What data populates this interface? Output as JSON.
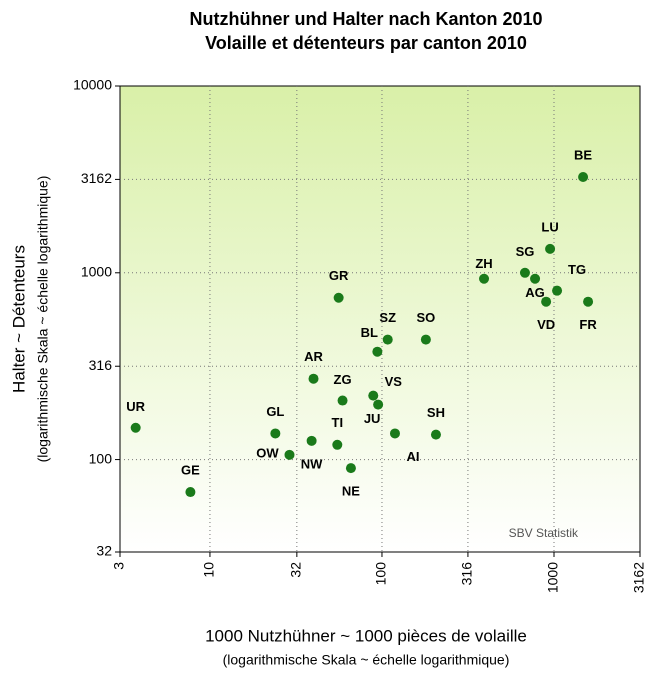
{
  "chart_data": {
    "type": "scatter",
    "title": [
      "Nutzhühner und Halter nach Kanton 2010",
      "Volaille et détenteurs par canton 2010"
    ],
    "xlabel": [
      "1000 Nutzhühner ~ 1000 pièces de volaille",
      "(logarithmische Skala ~ échelle logarithmique)"
    ],
    "ylabel": [
      "Halter ~ Détenteurs",
      "(logarithmische Skala ~ échelle logarithmique)"
    ],
    "annotation": "SBV Statistik",
    "xscale": "log",
    "yscale": "log",
    "grid": true,
    "color": "#1a7a1a",
    "xlim": [
      3,
      3162
    ],
    "xticks": [
      3,
      10,
      32,
      100,
      316,
      1000,
      3162
    ],
    "ylim": [
      32,
      10000
    ],
    "yticks": [
      32,
      100,
      316,
      1000,
      3162,
      10000
    ],
    "series": [
      {
        "name": null,
        "labels": [
          "UR",
          "GE",
          "GL",
          "OW",
          "NW",
          "TI",
          "NE",
          "AR",
          "ZG",
          "GR",
          "VS",
          "JU",
          "AI",
          "BL",
          "SZ",
          "SO",
          "SH",
          "ZH",
          "SG",
          "AG",
          "LU",
          "TG",
          "VD",
          "FR",
          "BE"
        ],
        "x": [
          3.7,
          7.7,
          24,
          29,
          39,
          55,
          66,
          40,
          59,
          56,
          89,
          95,
          119,
          94,
          108,
          180,
          206,
          392,
          678,
          776,
          949,
          1042,
          900,
          1578,
          1476
        ],
        "values": [
          148,
          67,
          138,
          106,
          126,
          120,
          90,
          271,
          207,
          735,
          220,
          197,
          138,
          378,
          439,
          439,
          136,
          929,
          1000,
          929,
          1343,
          802,
          700,
          700,
          3258
        ]
      }
    ]
  }
}
